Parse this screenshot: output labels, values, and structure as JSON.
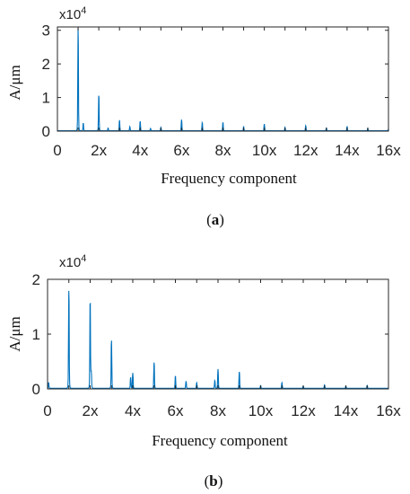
{
  "chart_data": [
    {
      "id": "a",
      "type": "line",
      "caption_prefix": "(",
      "caption_letter": "a",
      "caption_suffix": ")",
      "xlabel": "Frequency component",
      "ylabel": "A/μm",
      "exponent_label": "x10",
      "exponent_power": "4",
      "xlim": [
        0,
        16
      ],
      "ylim": [
        0,
        3.1
      ],
      "x_ticks": [
        0,
        2,
        4,
        6,
        8,
        10,
        12,
        14,
        16
      ],
      "x_tick_labels": [
        "0",
        "2x",
        "4x",
        "6x",
        "8x",
        "10x",
        "12x",
        "14x",
        "16x"
      ],
      "y_ticks": [
        0,
        1,
        2,
        3
      ],
      "y_tick_labels": [
        "0",
        "1",
        "2",
        "3"
      ],
      "grid": false,
      "color": "#0072BD",
      "peaks": [
        {
          "x": 1.0,
          "y": 3.05
        },
        {
          "x": 1.25,
          "y": 0.22
        },
        {
          "x": 2.0,
          "y": 1.05
        },
        {
          "x": 2.45,
          "y": 0.08
        },
        {
          "x": 3.0,
          "y": 0.3
        },
        {
          "x": 3.5,
          "y": 0.12
        },
        {
          "x": 4.0,
          "y": 0.28
        },
        {
          "x": 4.5,
          "y": 0.07
        },
        {
          "x": 5.0,
          "y": 0.1
        },
        {
          "x": 6.0,
          "y": 0.33
        },
        {
          "x": 7.0,
          "y": 0.24
        },
        {
          "x": 8.0,
          "y": 0.24
        },
        {
          "x": 9.0,
          "y": 0.12
        },
        {
          "x": 10.0,
          "y": 0.2
        },
        {
          "x": 11.0,
          "y": 0.1
        },
        {
          "x": 12.0,
          "y": 0.15
        },
        {
          "x": 13.0,
          "y": 0.08
        },
        {
          "x": 14.0,
          "y": 0.12
        },
        {
          "x": 15.0,
          "y": 0.07
        },
        {
          "x": 16.0,
          "y": 0.05
        }
      ]
    },
    {
      "id": "b",
      "type": "line",
      "caption_prefix": "(",
      "caption_letter": "b",
      "caption_suffix": ")",
      "xlabel": "Frequency component",
      "ylabel": "A/μm",
      "exponent_label": "x10",
      "exponent_power": "4",
      "xlim": [
        0,
        16
      ],
      "ylim": [
        0,
        2
      ],
      "x_ticks": [
        0,
        2,
        4,
        6,
        8,
        10,
        12,
        14,
        16
      ],
      "x_tick_labels": [
        "0",
        "2x",
        "4x",
        "6x",
        "8x",
        "10x",
        "12x",
        "14x",
        "16x"
      ],
      "y_ticks": [
        0,
        1,
        2
      ],
      "y_tick_labels": [
        "0",
        "1",
        "2"
      ],
      "grid": false,
      "color": "#0072BD",
      "peaks": [
        {
          "x": 0.05,
          "y": 0.1
        },
        {
          "x": 1.0,
          "y": 1.78
        },
        {
          "x": 2.0,
          "y": 1.57
        },
        {
          "x": 2.05,
          "y": 0.3
        },
        {
          "x": 3.0,
          "y": 0.87
        },
        {
          "x": 3.9,
          "y": 0.2
        },
        {
          "x": 4.0,
          "y": 0.28
        },
        {
          "x": 5.0,
          "y": 0.47
        },
        {
          "x": 6.0,
          "y": 0.22
        },
        {
          "x": 6.5,
          "y": 0.13
        },
        {
          "x": 7.0,
          "y": 0.1
        },
        {
          "x": 7.85,
          "y": 0.14
        },
        {
          "x": 8.0,
          "y": 0.35
        },
        {
          "x": 9.0,
          "y": 0.3
        },
        {
          "x": 10.0,
          "y": 0.05
        },
        {
          "x": 11.0,
          "y": 0.1
        },
        {
          "x": 12.0,
          "y": 0.04
        },
        {
          "x": 13.0,
          "y": 0.06
        },
        {
          "x": 14.0,
          "y": 0.04
        },
        {
          "x": 15.0,
          "y": 0.05
        }
      ]
    }
  ]
}
